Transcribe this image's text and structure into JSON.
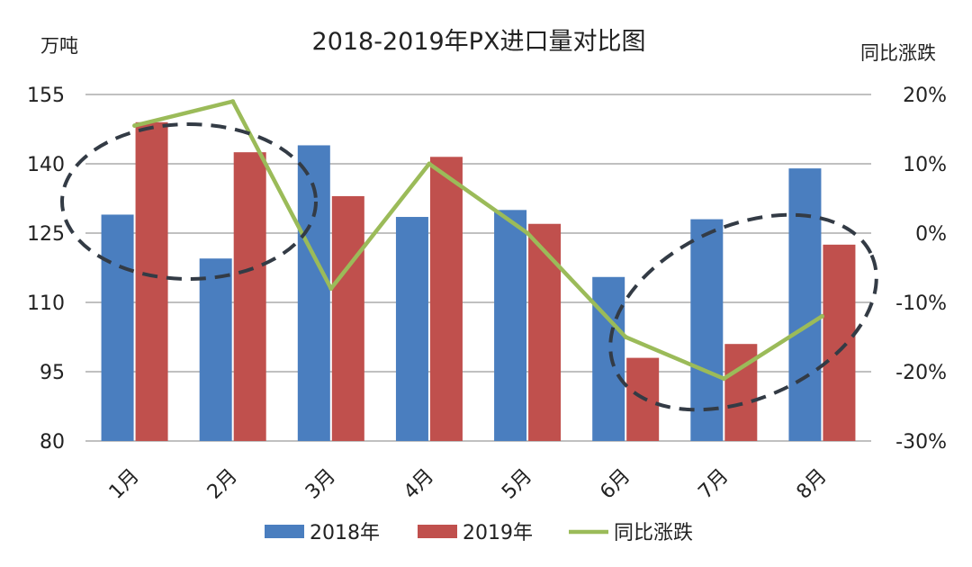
{
  "chart_data": {
    "type": "bar+line",
    "title": "2018-2019年PX进口量对比图",
    "ylabel_left": "万吨",
    "ylabel_right": "同比涨跌",
    "categories": [
      "1月",
      "2月",
      "3月",
      "4月",
      "5月",
      "6月",
      "7月",
      "8月"
    ],
    "left_axis": {
      "min": 80,
      "max": 155,
      "ticks": [
        "155",
        "140",
        "125",
        "110",
        "95",
        "80"
      ]
    },
    "right_axis": {
      "min": -30,
      "max": 20,
      "ticks": [
        "20%",
        "10%",
        "0%",
        "-10%",
        "-20%",
        "-30%"
      ]
    },
    "series": [
      {
        "name": "2018年",
        "type": "bar",
        "axis": "left",
        "color": "#4a7ebf",
        "values": [
          129,
          119.5,
          144,
          128.5,
          130,
          115.5,
          128,
          139
        ]
      },
      {
        "name": "2019年",
        "type": "bar",
        "axis": "left",
        "color": "#c0504d",
        "values": [
          149,
          142.5,
          133,
          141.5,
          127,
          98,
          101,
          122.5
        ]
      },
      {
        "name": "同比涨跌",
        "type": "line",
        "axis": "right",
        "color": "#9bbb59",
        "values": [
          15.5,
          19,
          -8,
          10,
          0,
          -15,
          -21,
          -12
        ]
      }
    ],
    "legend": [
      "2018年",
      "2019年",
      "同比涨跌"
    ],
    "legend_position": "bottom",
    "grid": true,
    "annotations": "two dashed ellipses highlighting Jan–Feb and Jun–Aug"
  }
}
